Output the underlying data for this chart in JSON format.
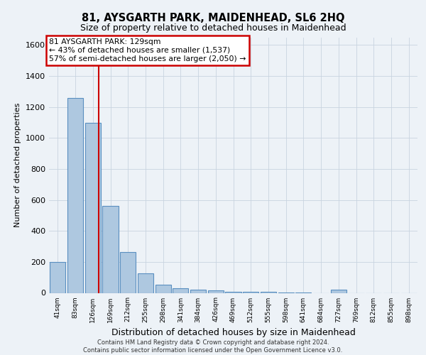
{
  "title": "81, AYSGARTH PARK, MAIDENHEAD, SL6 2HQ",
  "subtitle": "Size of property relative to detached houses in Maidenhead",
  "xlabel": "Distribution of detached houses by size in Maidenhead",
  "ylabel": "Number of detached properties",
  "footer_line1": "Contains HM Land Registry data © Crown copyright and database right 2024.",
  "footer_line2": "Contains public sector information licensed under the Open Government Licence v3.0.",
  "bin_labels": [
    "41sqm",
    "83sqm",
    "126sqm",
    "169sqm",
    "212sqm",
    "255sqm",
    "298sqm",
    "341sqm",
    "384sqm",
    "426sqm",
    "469sqm",
    "512sqm",
    "555sqm",
    "598sqm",
    "641sqm",
    "684sqm",
    "727sqm",
    "769sqm",
    "812sqm",
    "855sqm",
    "898sqm"
  ],
  "bar_values": [
    200,
    1260,
    1100,
    560,
    265,
    125,
    55,
    30,
    20,
    15,
    5,
    5,
    5,
    3,
    3,
    0,
    20,
    0,
    0,
    0,
    0
  ],
  "bar_color": "#aec8e0",
  "bar_edge_color": "#5a8fc0",
  "vline_x_index": 2.35,
  "vline_color": "#cc0000",
  "property_sqm": 129,
  "pct_smaller": 43,
  "n_smaller": 1537,
  "pct_larger": 57,
  "n_larger": 2050,
  "annotation_box_edge_color": "#cc0000",
  "ylim": [
    0,
    1650
  ],
  "yticks": [
    0,
    200,
    400,
    600,
    800,
    1000,
    1200,
    1400,
    1600
  ],
  "grid_color": "#c8d4e0",
  "bg_color": "#edf2f7",
  "title_fontsize": 10.5,
  "subtitle_fontsize": 9,
  "ann_fontsize": 7.8,
  "ylabel_fontsize": 8,
  "xlabel_fontsize": 9,
  "footer_fontsize": 6,
  "tick_fontsize": 6.5
}
